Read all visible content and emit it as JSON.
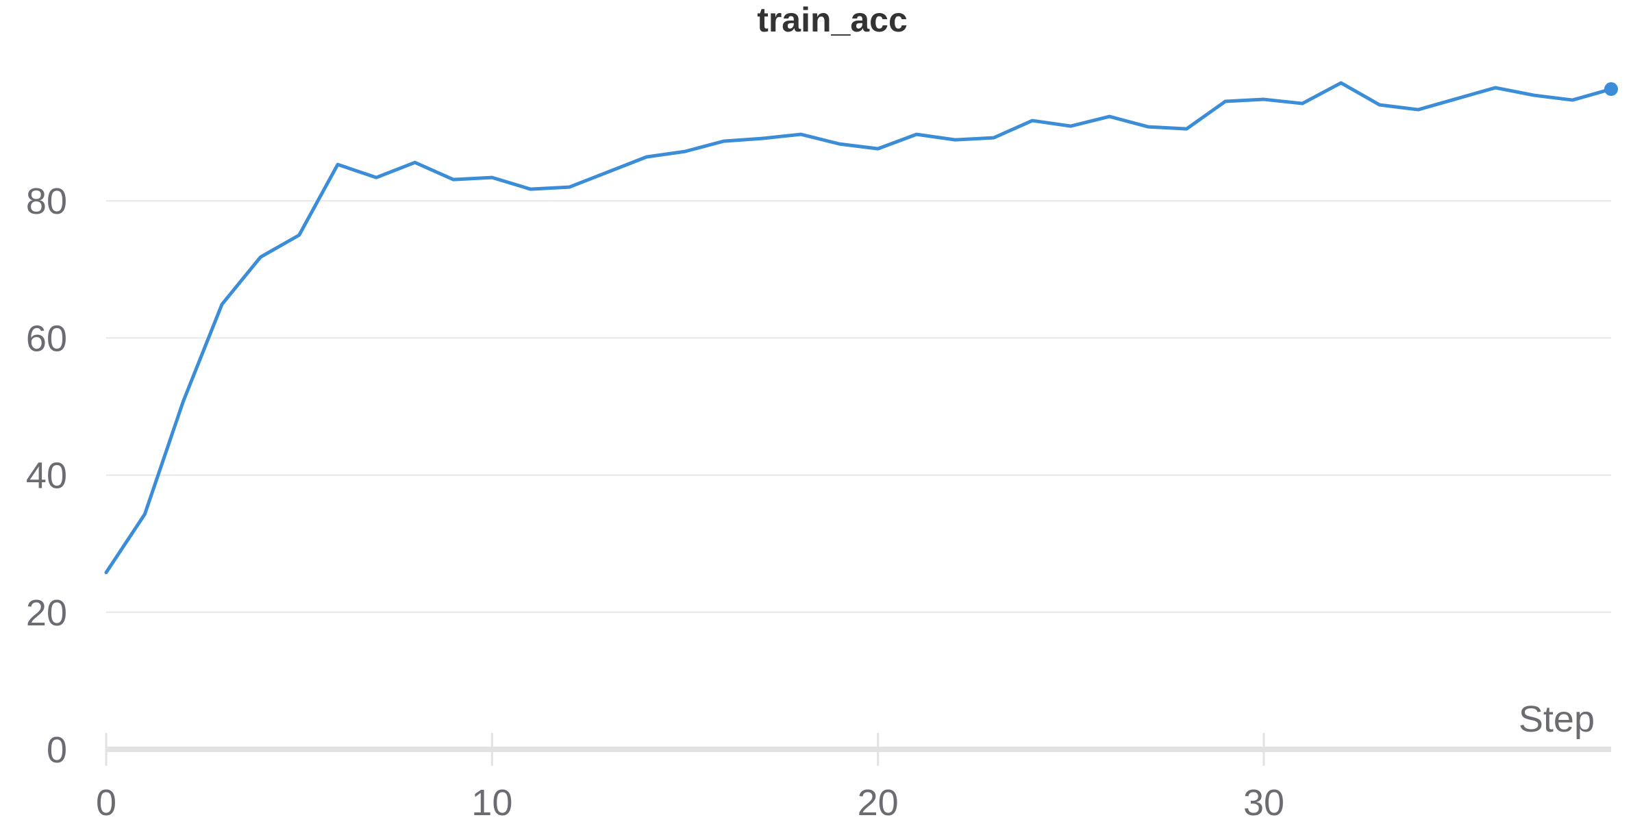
{
  "chart_data": {
    "type": "line",
    "title": "train_acc",
    "xlabel": "Step",
    "ylabel": "",
    "xlim": [
      0,
      39
    ],
    "ylim": [
      0,
      100
    ],
    "xticks": [
      0,
      10,
      20,
      30
    ],
    "yticks": [
      0,
      20,
      40,
      60,
      80
    ],
    "grid": true,
    "legend": "none",
    "colors": {
      "line": "#3a8dd6",
      "grid": "#e6e6e6",
      "axis": "#e2e2e2",
      "tick_text": "#6b6b72",
      "title": "#333333"
    },
    "series": [
      {
        "x": [
          0,
          1,
          2,
          3,
          4,
          5,
          6,
          7,
          8,
          9,
          10,
          11,
          12,
          13,
          14,
          15,
          16,
          17,
          18,
          19,
          20,
          21,
          22,
          23,
          24,
          25,
          26,
          27,
          28,
          29,
          30,
          31,
          32,
          33,
          34,
          35,
          36,
          37,
          38,
          39
        ],
        "values": [
          25.8,
          34.3,
          50.8,
          64.9,
          71.8,
          75.0,
          85.3,
          83.4,
          85.6,
          83.1,
          83.4,
          81.7,
          82.0,
          84.2,
          86.4,
          87.2,
          88.7,
          89.1,
          89.7,
          88.3,
          87.6,
          89.7,
          88.9,
          89.2,
          91.7,
          90.9,
          92.3,
          90.8,
          90.5,
          94.5,
          94.8,
          94.2,
          97.2,
          94.0,
          93.3,
          94.9,
          96.5,
          95.4,
          94.7,
          96.3
        ]
      }
    ]
  }
}
